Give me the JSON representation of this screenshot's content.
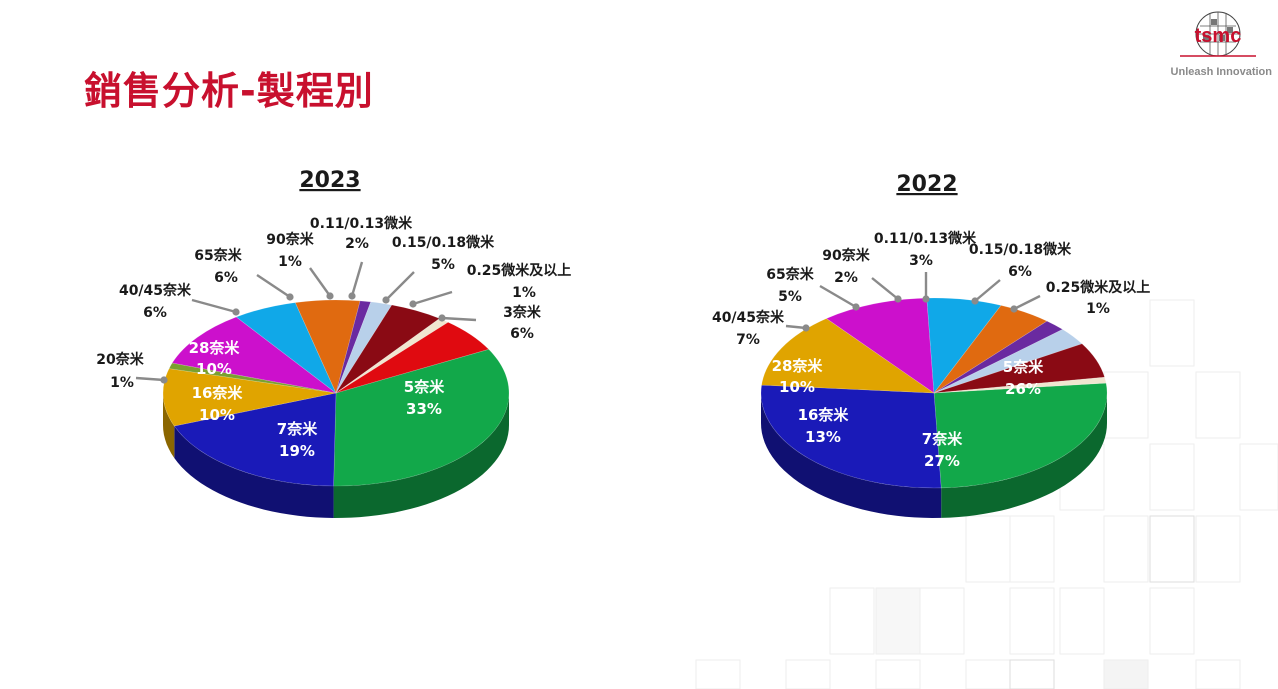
{
  "slide": {
    "title": "銷售分析-製程別",
    "brand": {
      "logo_text": "tsmc",
      "tagline": "Unleash Innovation",
      "color": "#c8102e"
    }
  },
  "chart_data": [
    {
      "type": "pie",
      "title": "2023",
      "slices": [
        {
          "label": "5奈米",
          "value": 33,
          "value_label": "33%",
          "color": "#12a84a",
          "inside": true
        },
        {
          "label": "7奈米",
          "value": 19,
          "value_label": "19%",
          "color": "#1a1ab8",
          "inside": true
        },
        {
          "label": "16奈米",
          "value": 10,
          "value_label": "10%",
          "color": "#e0a400",
          "inside": true
        },
        {
          "label": "20奈米",
          "value": 1,
          "value_label": "1%",
          "color": "#7aa030",
          "inside": false
        },
        {
          "label": "28奈米",
          "value": 10,
          "value_label": "10%",
          "color": "#cc10cc",
          "inside": true
        },
        {
          "label": "40/45奈米",
          "value": 6,
          "value_label": "6%",
          "color": "#10a8e8",
          "inside": false
        },
        {
          "label": "65奈米",
          "value": 6,
          "value_label": "6%",
          "color": "#e06a10",
          "inside": false
        },
        {
          "label": "90奈米",
          "value": 1,
          "value_label": "1%",
          "color": "#6a2aa0",
          "inside": false
        },
        {
          "label": "0.11/0.13微米",
          "value": 2,
          "value_label": "2%",
          "color": "#b8d0ea",
          "inside": false
        },
        {
          "label": "0.15/0.18微米",
          "value": 5,
          "value_label": "5%",
          "color": "#8a0a14",
          "inside": false
        },
        {
          "label": "0.25微米及以上",
          "value": 1,
          "value_label": "1%",
          "color": "#f0e6d0",
          "inside": false
        },
        {
          "label": "3奈米",
          "value": 6,
          "value_label": "6%",
          "color": "#e00a10",
          "inside": false
        }
      ]
    },
    {
      "type": "pie",
      "title": "2022",
      "slices": [
        {
          "label": "5奈米",
          "value": 26,
          "value_label": "26%",
          "color": "#12a84a",
          "inside": true
        },
        {
          "label": "7奈米",
          "value": 27,
          "value_label": "27%",
          "color": "#1a1ab8",
          "inside": true
        },
        {
          "label": "16奈米",
          "value": 13,
          "value_label": "13%",
          "color": "#e0a400",
          "inside": true
        },
        {
          "label": "28奈米",
          "value": 10,
          "value_label": "10%",
          "color": "#cc10cc",
          "inside": true
        },
        {
          "label": "40/45奈米",
          "value": 7,
          "value_label": "7%",
          "color": "#10a8e8",
          "inside": false
        },
        {
          "label": "65奈米",
          "value": 5,
          "value_label": "5%",
          "color": "#e06a10",
          "inside": false
        },
        {
          "label": "90奈米",
          "value": 2,
          "value_label": "2%",
          "color": "#6a2aa0",
          "inside": false
        },
        {
          "label": "0.11/0.13微米",
          "value": 3,
          "value_label": "3%",
          "color": "#b8d0ea",
          "inside": false
        },
        {
          "label": "0.15/0.18微米",
          "value": 6,
          "value_label": "6%",
          "color": "#8a0a14",
          "inside": false
        },
        {
          "label": "0.25微米及以上",
          "value": 1,
          "value_label": "1%",
          "color": "#f0e6d0",
          "inside": false
        }
      ]
    }
  ]
}
